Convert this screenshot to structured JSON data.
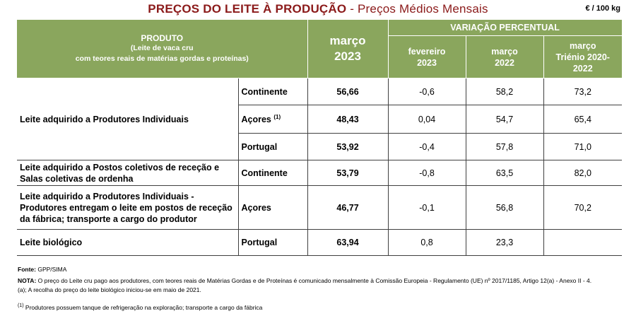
{
  "title": {
    "main": "PREÇOS DO LEITE À PRODUÇÃO",
    "sub": " - Preços Médios Mensais"
  },
  "unit": "€ / 100 kg",
  "header": {
    "produto": "PRODUTO",
    "produto_sub1": "(Leite de vaca cru",
    "produto_sub2": "com teores reais de matérias gordas e proteínas)",
    "month_label": "março",
    "month_year": "2023",
    "variacao": "VARIAÇÃO PERCENTUAL",
    "col1_a": "fevereiro",
    "col1_b": "2023",
    "col2_a": "março",
    "col2_b": "2022",
    "col3_a": "março",
    "col3_b": "Triénio 2020-",
    "col3_c": "2022"
  },
  "rows": [
    {
      "product": "Leite adquirido a Produtores Individuais",
      "region": "Continente",
      "price": "56,66",
      "v1": "-0,6",
      "v2": "58,2",
      "v3": "73,2"
    },
    {
      "product": "",
      "region": "Açores",
      "region_note": "(1)",
      "price": "48,43",
      "v1": "0,04",
      "v2": "54,7",
      "v3": "65,4"
    },
    {
      "product": "",
      "region": "Portugal",
      "price": "53,92",
      "v1": "-0,4",
      "v2": "57,8",
      "v3": "71,0"
    },
    {
      "product": "Leite adquirido a Postos coletivos de receção e Salas coletivas de ordenha",
      "region": "Continente",
      "price": "53,79",
      "v1": "-0,8",
      "v2": "63,5",
      "v3": "82,0"
    },
    {
      "product": "Leite adquirido a Produtores Individuais - Produtores entregam o leite em postos de receção da fábrica; transporte a cargo do produtor",
      "region": "Açores",
      "price": "46,77",
      "v1": "-0,1",
      "v2": "56,8",
      "v3": "70,2"
    },
    {
      "product": "Leite biológico",
      "region": "Portugal",
      "price": "63,94",
      "v1": "0,8",
      "v2": "23,3",
      "v3": ""
    }
  ],
  "footer": {
    "fonte_label": "Fonte:",
    "fonte": " GPP/SIMA",
    "nota_label": "NOTA:",
    "nota": " O preço do Leite cru pago aos produtores, com teores reais de Matérias Gordas e de Proteínas é comunicado mensalmente à Comissão Europeia - Regulamento (UE) nº 2017/1185, Artigo 12(a) - Anexo II - 4.(a); A recolha do preço do leite biológico iniciou-se em maio de 2021.",
    "note1_mark": "(1)",
    "note1": " Produtores possuem tanque de refrigeração na exploração; transporte a cargo da fábrica"
  }
}
